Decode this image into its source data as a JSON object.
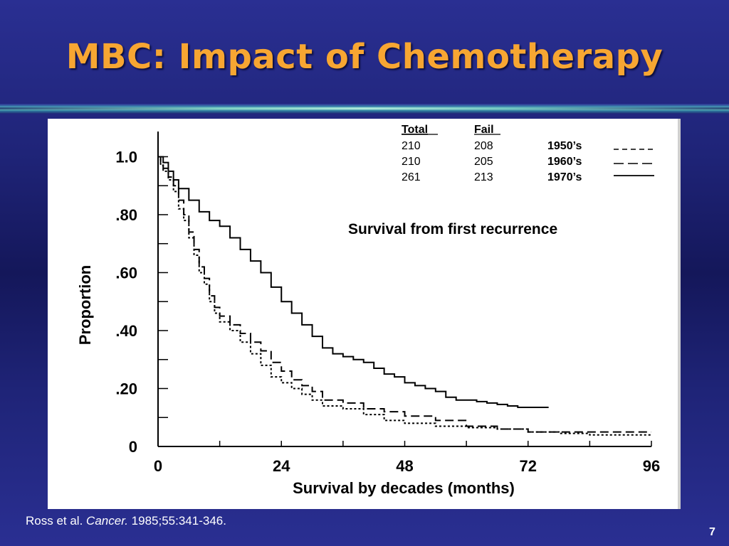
{
  "slide": {
    "title": "MBC: Impact of Chemotherapy",
    "citation": {
      "authors": "Ross et al.",
      "journal": "Cancer.",
      "details": " 1985;55:341-346."
    },
    "page_number": "7"
  },
  "chart_data": {
    "type": "line",
    "title": "Survival from first recurrence",
    "xlabel": "Survival by decades (months)",
    "ylabel": "Proportion",
    "xlim": [
      0,
      96
    ],
    "ylim": [
      0,
      1.0
    ],
    "x_ticks": [
      {
        "value": 0,
        "label": "0"
      },
      {
        "value": 24,
        "label": "24"
      },
      {
        "value": 48,
        "label": "48"
      },
      {
        "value": 72,
        "label": "72"
      },
      {
        "value": 96,
        "label": "96"
      }
    ],
    "y_ticks": [
      {
        "value": 1.0,
        "label": "1.0"
      },
      {
        "value": 0.8,
        "label": ".80"
      },
      {
        "value": 0.6,
        "label": ".60"
      },
      {
        "value": 0.4,
        "label": ".40"
      },
      {
        "value": 0.2,
        "label": ".20"
      },
      {
        "value": 0.0,
        "label": "0"
      }
    ],
    "legend": {
      "headers": [
        "Total",
        "Fail"
      ],
      "rows": [
        {
          "total": "210",
          "fail": "208",
          "label": "1950’s"
        },
        {
          "total": "210",
          "fail": "205",
          "label": "1960’s"
        },
        {
          "total": "261",
          "fail": "213",
          "label": "1970’s"
        }
      ]
    },
    "series": [
      {
        "name": "1950’s",
        "style": "dotted",
        "color": "#000000",
        "points": [
          [
            0,
            1.0
          ],
          [
            0.5,
            0.97
          ],
          [
            1,
            0.95
          ],
          [
            2,
            0.92
          ],
          [
            3,
            0.88
          ],
          [
            4,
            0.82
          ],
          [
            5,
            0.78
          ],
          [
            6,
            0.72
          ],
          [
            7,
            0.66
          ],
          [
            8,
            0.6
          ],
          [
            9,
            0.56
          ],
          [
            10,
            0.5
          ],
          [
            11,
            0.46
          ],
          [
            12,
            0.43
          ],
          [
            14,
            0.4
          ],
          [
            16,
            0.36
          ],
          [
            18,
            0.32
          ],
          [
            20,
            0.28
          ],
          [
            22,
            0.24
          ],
          [
            24,
            0.22
          ],
          [
            26,
            0.2
          ],
          [
            28,
            0.18
          ],
          [
            30,
            0.16
          ],
          [
            32,
            0.14
          ],
          [
            36,
            0.13
          ],
          [
            40,
            0.11
          ],
          [
            44,
            0.09
          ],
          [
            48,
            0.08
          ],
          [
            54,
            0.07
          ],
          [
            60,
            0.065
          ],
          [
            66,
            0.06
          ],
          [
            72,
            0.05
          ],
          [
            78,
            0.045
          ],
          [
            84,
            0.04
          ],
          [
            90,
            0.04
          ],
          [
            96,
            0.04
          ]
        ]
      },
      {
        "name": "1960’s",
        "style": "dashed",
        "color": "#000000",
        "points": [
          [
            0,
            1.0
          ],
          [
            0.5,
            0.98
          ],
          [
            1,
            0.96
          ],
          [
            2,
            0.93
          ],
          [
            3,
            0.9
          ],
          [
            4,
            0.85
          ],
          [
            5,
            0.8
          ],
          [
            6,
            0.74
          ],
          [
            7,
            0.68
          ],
          [
            8,
            0.62
          ],
          [
            9,
            0.58
          ],
          [
            10,
            0.52
          ],
          [
            11,
            0.48
          ],
          [
            12,
            0.45
          ],
          [
            14,
            0.42
          ],
          [
            16,
            0.39
          ],
          [
            18,
            0.36
          ],
          [
            20,
            0.33
          ],
          [
            22,
            0.29
          ],
          [
            24,
            0.26
          ],
          [
            26,
            0.23
          ],
          [
            28,
            0.21
          ],
          [
            30,
            0.19
          ],
          [
            32,
            0.16
          ],
          [
            36,
            0.15
          ],
          [
            40,
            0.13
          ],
          [
            44,
            0.12
          ],
          [
            48,
            0.105
          ],
          [
            54,
            0.09
          ],
          [
            60,
            0.07
          ],
          [
            66,
            0.06
          ],
          [
            72,
            0.05
          ],
          [
            78,
            0.05
          ],
          [
            84,
            0.05
          ],
          [
            90,
            0.05
          ],
          [
            96,
            0.05
          ]
        ]
      },
      {
        "name": "1970’s",
        "style": "solid",
        "color": "#000000",
        "points": [
          [
            0,
            1.0
          ],
          [
            1,
            0.98
          ],
          [
            2,
            0.95
          ],
          [
            3,
            0.92
          ],
          [
            4,
            0.89
          ],
          [
            6,
            0.85
          ],
          [
            8,
            0.81
          ],
          [
            10,
            0.78
          ],
          [
            12,
            0.76
          ],
          [
            14,
            0.72
          ],
          [
            16,
            0.68
          ],
          [
            18,
            0.64
          ],
          [
            20,
            0.6
          ],
          [
            22,
            0.55
          ],
          [
            24,
            0.5
          ],
          [
            26,
            0.46
          ],
          [
            28,
            0.42
          ],
          [
            30,
            0.38
          ],
          [
            32,
            0.34
          ],
          [
            34,
            0.32
          ],
          [
            36,
            0.31
          ],
          [
            38,
            0.3
          ],
          [
            40,
            0.29
          ],
          [
            42,
            0.27
          ],
          [
            44,
            0.25
          ],
          [
            46,
            0.24
          ],
          [
            48,
            0.22
          ],
          [
            50,
            0.21
          ],
          [
            52,
            0.2
          ],
          [
            54,
            0.19
          ],
          [
            56,
            0.17
          ],
          [
            58,
            0.16
          ],
          [
            60,
            0.16
          ],
          [
            62,
            0.155
          ],
          [
            64,
            0.15
          ],
          [
            66,
            0.145
          ],
          [
            68,
            0.14
          ],
          [
            70,
            0.135
          ],
          [
            72,
            0.135
          ],
          [
            74,
            0.135
          ],
          [
            76,
            0.135
          ]
        ]
      }
    ],
    "grid": false
  }
}
